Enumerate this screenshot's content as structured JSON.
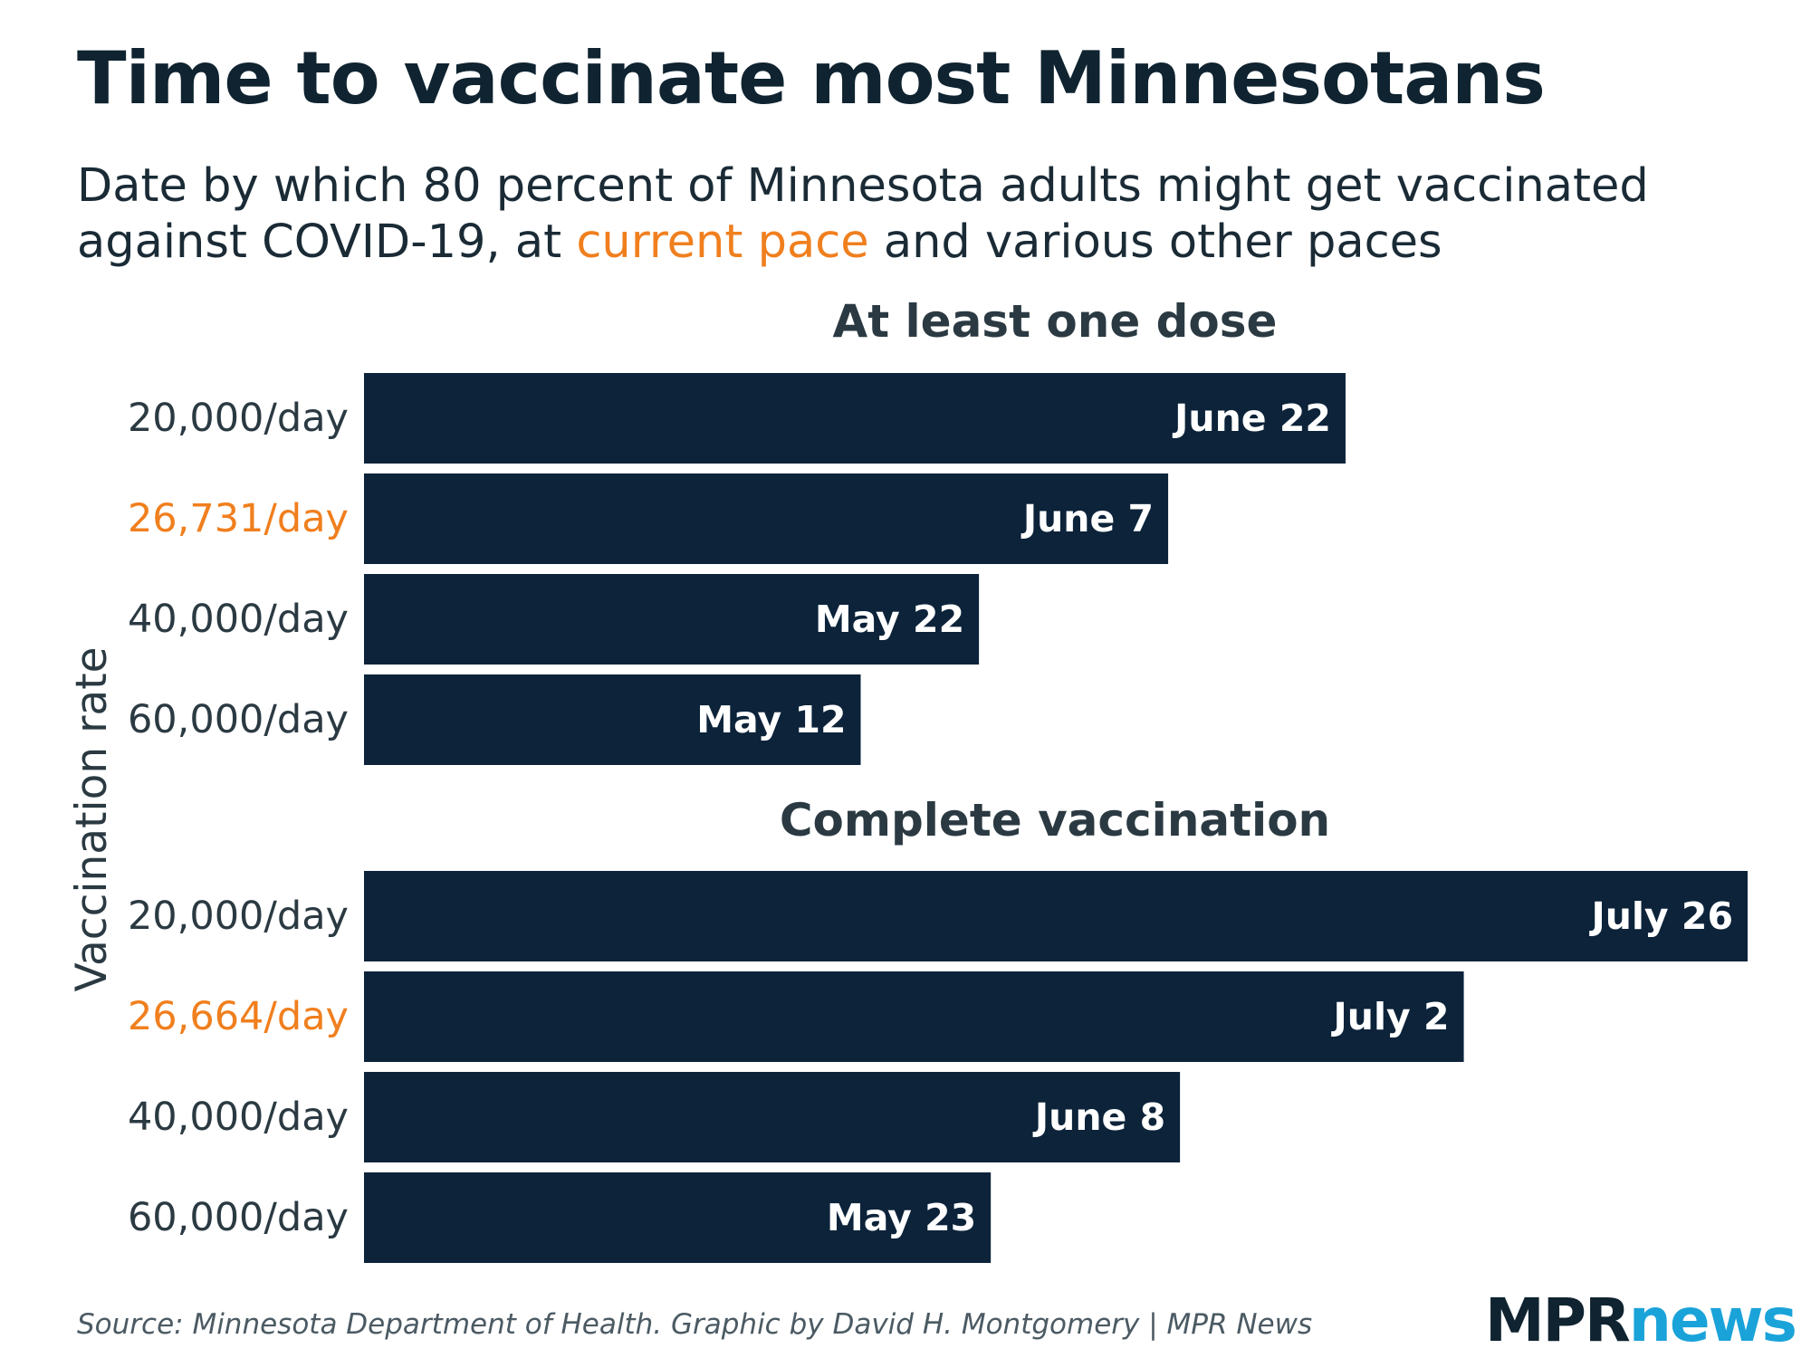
{
  "header": {
    "title": "Time to vaccinate most Minnesotans",
    "subtitle_part1": "Date by which 80 percent of Minnesota adults might get vaccinated against COVID-19, at ",
    "subtitle_highlight": "current pace",
    "subtitle_part2": " and various other paces"
  },
  "colors": {
    "bar": "#0c233a",
    "highlight": "#f07f1e",
    "label": "#2b3a42",
    "title": "#0f2330",
    "logo_news": "#1aa3d9"
  },
  "footer": {
    "source": "Source: Minnesota Department of Health. Graphic by David H. Montgomery | MPR News",
    "logo_mpr": "MPR",
    "logo_news": "news"
  },
  "chart_data": {
    "type": "bar",
    "orientation": "horizontal",
    "ylabel": "Vaccination rate",
    "value_unit": "days after March 31",
    "xlim": [
      0,
      117
    ],
    "panels": [
      {
        "title": "At least one dose",
        "bars": [
          {
            "category": "20,000/day",
            "label": "June 22",
            "value": 83,
            "current_pace": false
          },
          {
            "category": "26,731/day",
            "label": "June 7",
            "value": 68,
            "current_pace": true
          },
          {
            "category": "40,000/day",
            "label": "May 22",
            "value": 52,
            "current_pace": false
          },
          {
            "category": "60,000/day",
            "label": "May 12",
            "value": 42,
            "current_pace": false
          }
        ]
      },
      {
        "title": "Complete vaccination",
        "bars": [
          {
            "category": "20,000/day",
            "label": "July 26",
            "value": 117,
            "current_pace": false
          },
          {
            "category": "26,664/day",
            "label": "July 2",
            "value": 93,
            "current_pace": true
          },
          {
            "category": "40,000/day",
            "label": "June 8",
            "value": 69,
            "current_pace": false
          },
          {
            "category": "60,000/day",
            "label": "May 23",
            "value": 53,
            "current_pace": false
          }
        ]
      }
    ]
  }
}
